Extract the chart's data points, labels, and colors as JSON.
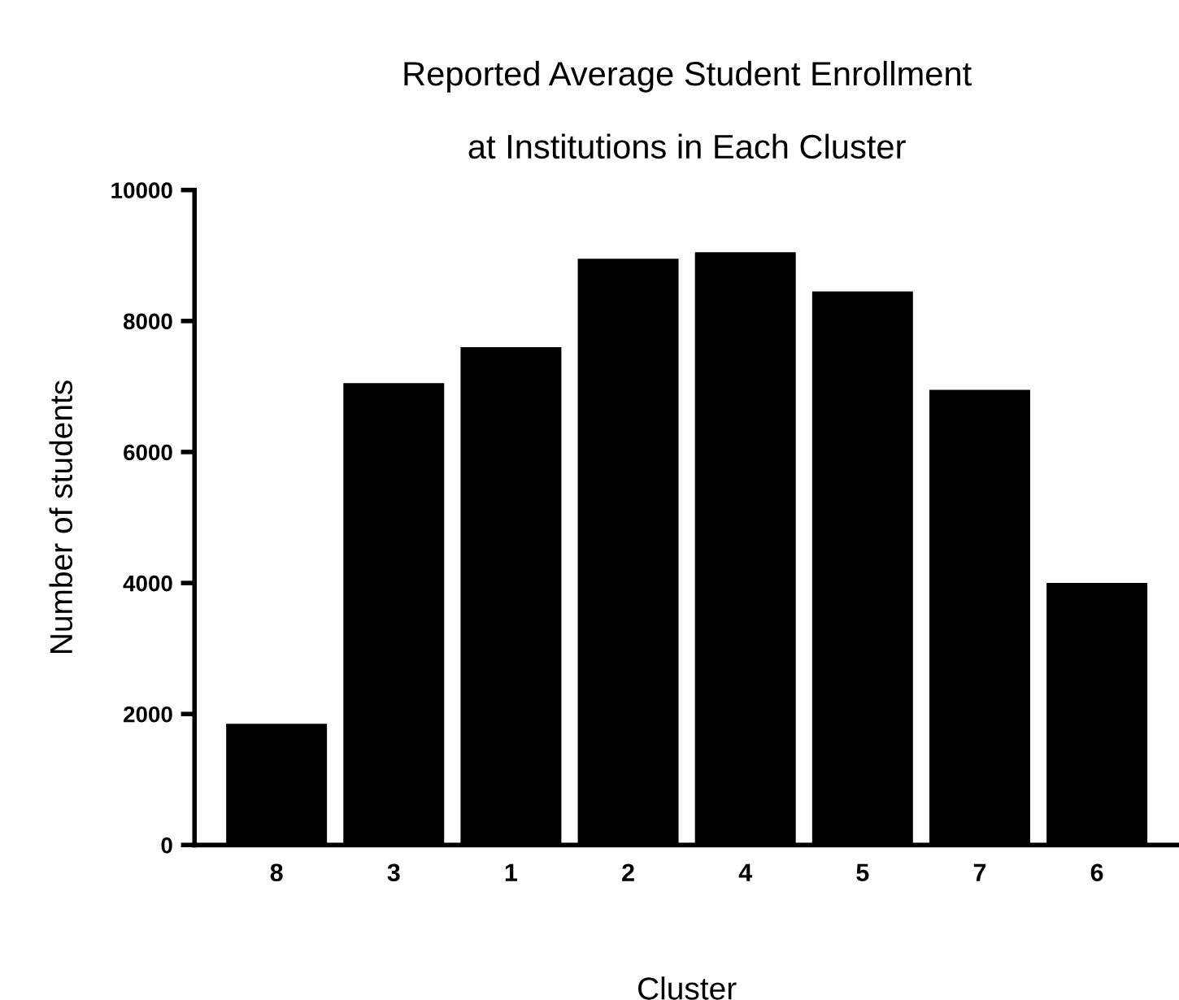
{
  "chart_data": {
    "type": "bar",
    "title": "Reported Average Student Enrollment\n\nat Institutions in Each Cluster",
    "xlabel": "Cluster",
    "ylabel": "Number of students",
    "categories": [
      "8",
      "3",
      "1",
      "2",
      "4",
      "5",
      "7",
      "6"
    ],
    "values": [
      1850,
      7050,
      7600,
      8950,
      9050,
      8450,
      6950,
      4000
    ],
    "color": "#000000",
    "ylim": [
      0,
      10000
    ],
    "yticks": [
      0,
      2000,
      4000,
      6000,
      8000,
      10000
    ],
    "grid": false
  }
}
